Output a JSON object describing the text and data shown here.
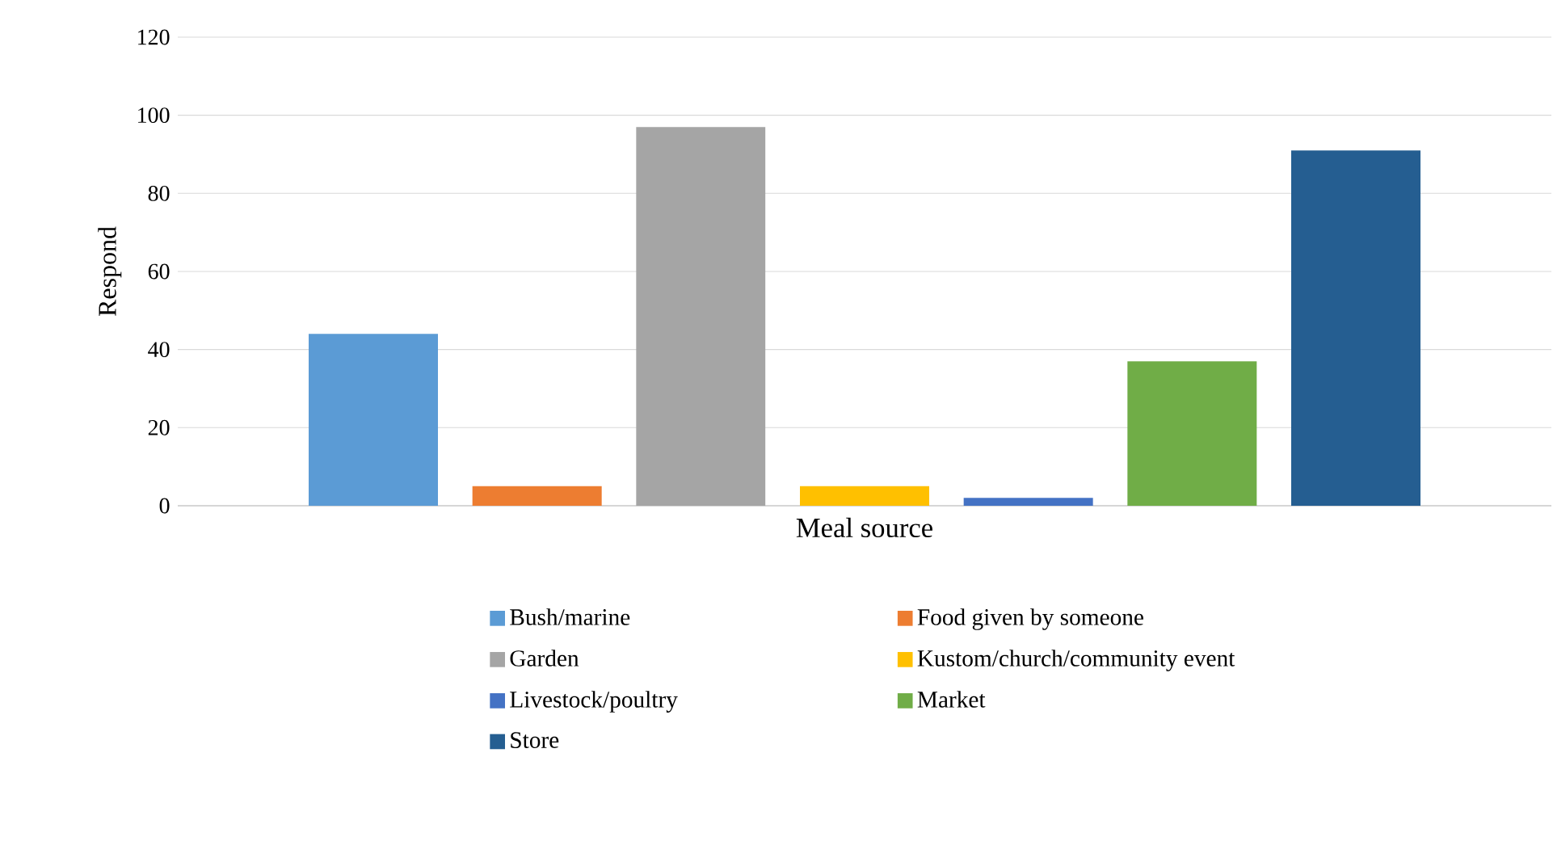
{
  "chart_data": {
    "type": "bar",
    "ylabel": "Respond",
    "categories": [
      "Meal source"
    ],
    "series": [
      {
        "name": "Bush/marine",
        "color": "#5b9bd5",
        "values": [
          44
        ]
      },
      {
        "name": "Food given by someone",
        "color": "#ed7d31",
        "values": [
          5
        ]
      },
      {
        "name": "Garden",
        "color": "#a5a5a5",
        "values": [
          97
        ]
      },
      {
        "name": "Kustom/church/community event",
        "color": "#ffc000",
        "values": [
          5
        ]
      },
      {
        "name": "Livestock/poultry",
        "color": "#4472c4",
        "values": [
          2
        ]
      },
      {
        "name": "Market",
        "color": "#70ad47",
        "values": [
          37
        ]
      },
      {
        "name": "Store",
        "color": "#255e91",
        "values": [
          91
        ]
      }
    ],
    "ylim": [
      0,
      120
    ],
    "yticks": [
      0,
      20,
      40,
      60,
      80,
      100,
      120
    ],
    "grid": "y",
    "legend": "bottom"
  }
}
